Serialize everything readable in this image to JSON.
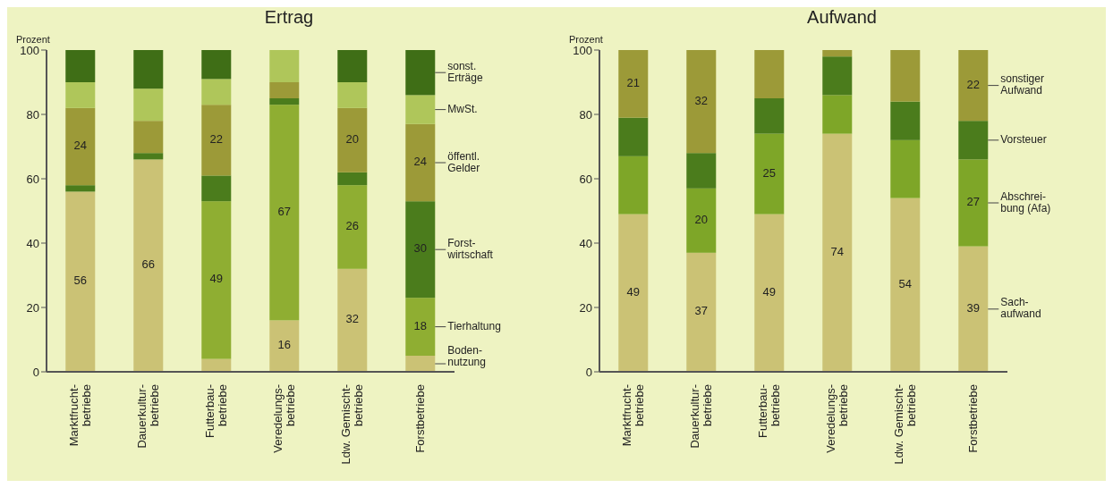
{
  "chart_data": [
    {
      "type": "bar",
      "title": "Ertrag",
      "ylabel": "Prozent",
      "stacked": true,
      "categories": [
        "Marktfrucht-\nbetriebe",
        "Dauerkultur-\nbetriebe",
        "Futterbau-\nbetriebe",
        "Veredelungs-\nbetriebe",
        "Ldw. Gemischt-\nbetriebe",
        "Forstbetriebe"
      ],
      "ylim": [
        0,
        100
      ],
      "yticks": [
        0,
        20,
        40,
        60,
        80,
        100
      ],
      "series": [
        {
          "name": "Boden-\nnutzung",
          "color": "#cbc275",
          "values": [
            56,
            66,
            4,
            16,
            32,
            5
          ],
          "value_labels": [
            "56",
            "66",
            null,
            "16",
            "32",
            null
          ]
        },
        {
          "name": "Tierhaltung",
          "color": "#8fae32",
          "values": [
            0,
            0,
            49,
            67,
            26,
            18
          ],
          "value_labels": [
            null,
            null,
            "49",
            "67",
            "26",
            "18"
          ]
        },
        {
          "name": "Forst-\nwirtschaft",
          "color": "#4b7c1c",
          "values": [
            2,
            2,
            8,
            2,
            4,
            30
          ],
          "value_labels": [
            null,
            null,
            null,
            null,
            null,
            "30"
          ]
        },
        {
          "name": "öffentl.\nGelder",
          "color": "#9c9a38",
          "values": [
            24,
            10,
            22,
            5,
            20,
            24
          ],
          "value_labels": [
            "24",
            null,
            "22",
            null,
            "20",
            "24"
          ]
        },
        {
          "name": "MwSt.",
          "color": "#afc65a",
          "values": [
            8,
            10,
            8,
            10,
            8,
            9
          ]
        },
        {
          "name": "sonst.\nErträge",
          "color": "#3f6e16",
          "values": [
            10,
            12,
            9,
            0,
            10,
            14
          ]
        }
      ]
    },
    {
      "type": "bar",
      "title": "Aufwand",
      "ylabel": "Prozent",
      "stacked": true,
      "categories": [
        "Marktfrucht-\nbetriebe",
        "Dauerkultur-\nbetriebe",
        "Futterbau-\nbetriebe",
        "Veredelungs-\nbetriebe",
        "Ldw. Gemischt-\nbetriebe",
        "Forstbetriebe"
      ],
      "ylim": [
        0,
        100
      ],
      "yticks": [
        0,
        20,
        40,
        60,
        80,
        100
      ],
      "series": [
        {
          "name": "Sach-\naufwand",
          "color": "#cbc275",
          "values": [
            49,
            37,
            49,
            74,
            54,
            39
          ],
          "value_labels": [
            "49",
            "37",
            "49",
            "74",
            "54",
            "39"
          ]
        },
        {
          "name": "Abschrei-\nbung (Afa)",
          "color": "#7ea628",
          "values": [
            18,
            20,
            25,
            12,
            18,
            27
          ],
          "value_labels": [
            null,
            "20",
            "25",
            null,
            null,
            "27"
          ]
        },
        {
          "name": "Vorsteuer",
          "color": "#4b7c1c",
          "values": [
            12,
            11,
            11,
            12,
            12,
            12
          ]
        },
        {
          "name": "sonstiger\nAufwand",
          "color": "#9c9a38",
          "values": [
            21,
            32,
            15,
            2,
            16,
            22
          ],
          "value_labels": [
            "21",
            "32",
            null,
            null,
            null,
            "22"
          ]
        }
      ]
    }
  ]
}
